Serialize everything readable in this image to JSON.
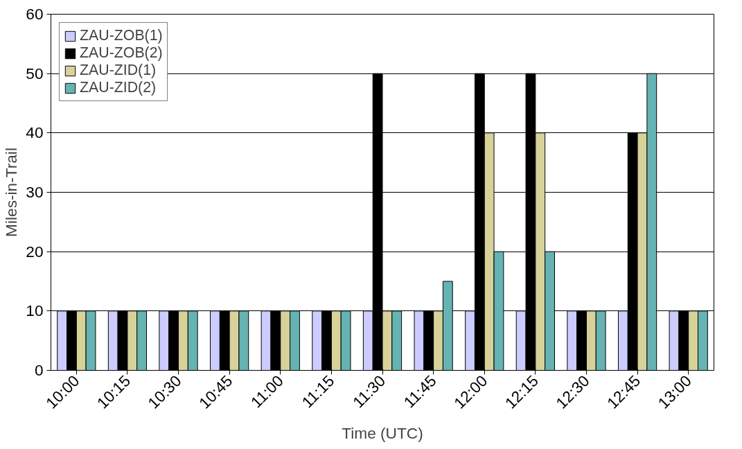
{
  "chart_data": {
    "type": "bar",
    "xlabel": "Time (UTC)",
    "ylabel": "Miles-in-Trail",
    "categories": [
      "10:00",
      "10:15",
      "10:30",
      "10:45",
      "11:00",
      "11:15",
      "11:30",
      "11:45",
      "12:00",
      "12:15",
      "12:30",
      "12:45",
      "13:00"
    ],
    "series": [
      {
        "name": "ZAU-ZOB(1)",
        "color": "#ccccff",
        "values": [
          10,
          10,
          10,
          10,
          10,
          10,
          10,
          10,
          10,
          10,
          10,
          10,
          10
        ]
      },
      {
        "name": "ZAU-ZOB(2)",
        "color": "#000000",
        "values": [
          10,
          10,
          10,
          10,
          10,
          10,
          50,
          10,
          50,
          50,
          10,
          40,
          10
        ]
      },
      {
        "name": "ZAU-ZID(1)",
        "color": "#d6d29a",
        "values": [
          10,
          10,
          10,
          10,
          10,
          10,
          10,
          10,
          40,
          40,
          10,
          40,
          10
        ]
      },
      {
        "name": "ZAU-ZID(2)",
        "color": "#66b3b3",
        "values": [
          10,
          10,
          10,
          10,
          10,
          10,
          10,
          15,
          20,
          20,
          10,
          50,
          10
        ]
      }
    ],
    "ylim": [
      0,
      60
    ],
    "yticks": [
      0,
      10,
      20,
      30,
      40,
      50,
      60
    ],
    "grid": "y",
    "legend": "top left"
  }
}
